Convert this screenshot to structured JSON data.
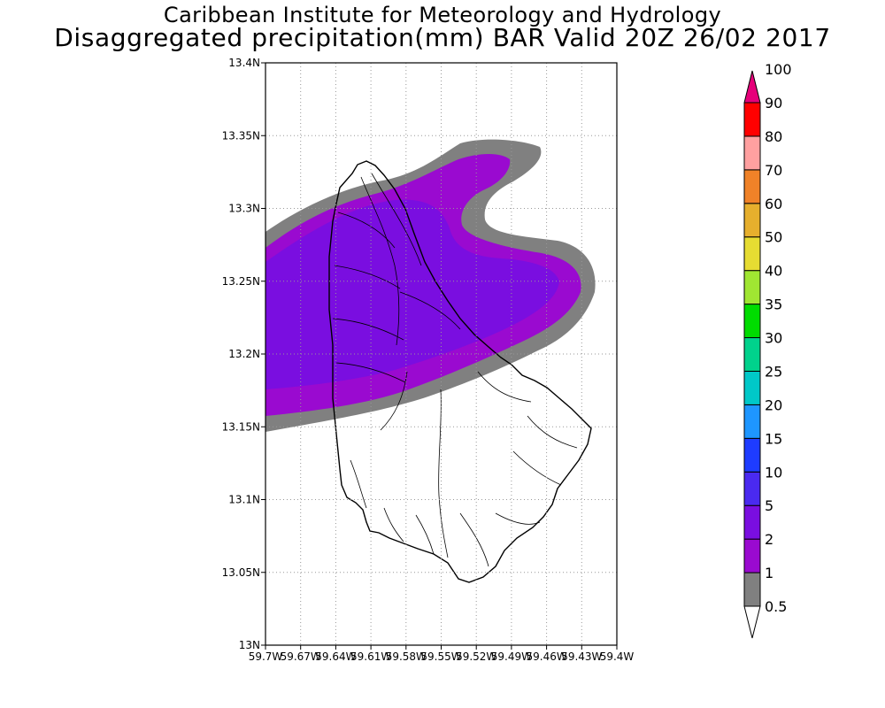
{
  "title": {
    "line1": "Caribbean Institute for Meteorology and Hydrology",
    "line2": "Disaggregated precipitation(mm) BAR Valid 20Z 26/02 2017"
  },
  "map": {
    "region": "Barbados",
    "lon_range": [
      -59.7,
      -59.4
    ],
    "lat_range": [
      13.0,
      13.4
    ],
    "grid": true,
    "y_ticks": [
      "13N",
      "13.05N",
      "13.1N",
      "13.15N",
      "13.2N",
      "13.25N",
      "13.3N",
      "13.35N",
      "13.4N"
    ],
    "x_ticks": [
      "59.7W",
      "59.67W",
      "59.64W",
      "59.61W",
      "59.58W",
      "59.55W",
      "59.52W",
      "59.49W",
      "59.46W",
      "59.43W",
      "59.4W"
    ],
    "precip_shading": [
      {
        "band": "0.5-1",
        "color": "#808080"
      },
      {
        "band": "1-2",
        "color": "#9a0ad0"
      },
      {
        "band": "2-5",
        "color": "#7a0ee0"
      }
    ]
  },
  "colorbar": {
    "labels": [
      "0.5",
      "1",
      "2",
      "5",
      "10",
      "15",
      "20",
      "25",
      "30",
      "35",
      "40",
      "50",
      "60",
      "70",
      "80",
      "90",
      "100"
    ],
    "colors": [
      "#808080",
      "#9a0ad0",
      "#7a0ee0",
      "#4a2af0",
      "#1e3cff",
      "#1e96ff",
      "#00c8c8",
      "#00d28c",
      "#00dc00",
      "#a0e632",
      "#e6dc32",
      "#e6af2d",
      "#f08228",
      "#ffa0a0",
      "#ff0000",
      "#ff3232",
      "#e6007a"
    ]
  }
}
